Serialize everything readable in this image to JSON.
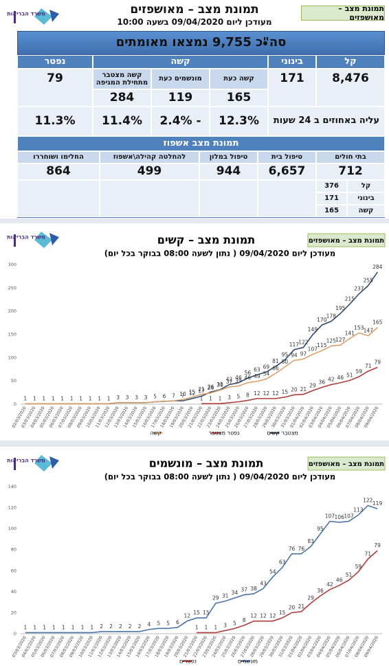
{
  "header": {
    "logo": "משרד הבריאות",
    "badge": "תמונת מצב – מאושפזים",
    "title": "תמונת מצב – מאושפזים",
    "subtitle": "מעודכן ליום 09/04/2020 בשעה 10:00"
  },
  "summary": "סה\"כ 9,755 נמצאו מאומתים",
  "status_table": {
    "header": [
      "קל",
      "בינוני",
      "קשה",
      "נפטר"
    ],
    "severe_sub": [
      "קשה כעת",
      "מונשמים כעת",
      "קשה מצטבר מתחילת המגיפה"
    ],
    "mild": "8,476",
    "moderate": "171",
    "severe_values": [
      "165",
      "119",
      "284"
    ],
    "deceased": "79",
    "change_label": "עליה באחוזים ב 24 שעות",
    "changes": [
      "12.3%",
      "- 2.4%",
      "11.4%",
      "11.3%"
    ]
  },
  "hospital_table": {
    "title": "תמונת מצב אשפוז",
    "header": [
      "בתי חולים",
      "טיפול בית",
      "טיפול במלון",
      "להחלטה קהילה\\אשפוז",
      "החלימו ושוחררו"
    ],
    "values": [
      "712",
      "6,657",
      "944",
      "499",
      "864"
    ],
    "breakdown": [
      [
        "קל",
        "376"
      ],
      [
        "בינוני",
        "171"
      ],
      [
        "קשה",
        "165"
      ]
    ]
  },
  "chart_data": [
    {
      "type": "line",
      "logo": "משרד הבריאות",
      "badge": "תמונת מצב – מאושפזים",
      "title": "תמונת מצב – קשים",
      "subtitle": "מעודכן ליום 09/04/2020 ( נתון לשעה 08:00 בבוקר בכל יום)",
      "categories": [
        "02/03/2020",
        "03/03/2020",
        "04/03/2020",
        "05/03/2020",
        "06/03/2020",
        "07/03/2020",
        "08/03/2020",
        "09/03/2020",
        "10/03/2020",
        "11/03/2020",
        "12/03/2020",
        "13/03/2020",
        "14/03/2020",
        "15/03/2020",
        "16/03/2020",
        "17/03/2020",
        "18/03/2020",
        "19/03/2020",
        "20/03/2020",
        "21/03/2020",
        "22/03/2020",
        "23/03/2020",
        "24/03/2020",
        "25/03/2020",
        "26/03/2020",
        "27/03/2020",
        "28/03/2020",
        "29/03/2020",
        "30/03/2020",
        "31/03/2020",
        "01/04/2020",
        "02/04/2020",
        "03/04/2020",
        "04/04/2020",
        "05/04/2020",
        "06/04/2020",
        "07/04/2020",
        "08/04/2020",
        "09/04/2020"
      ],
      "series": [
        {
          "name": "מצטבר קשים",
          "color": "#2e4a6d",
          "values": [
            1,
            1,
            1,
            1,
            1,
            1,
            1,
            1,
            1,
            1,
            3,
            3,
            3,
            3,
            5,
            6,
            7,
            7,
            12,
            17,
            26,
            31,
            42,
            46,
            56,
            63,
            69,
            81,
            95,
            117,
            122,
            149,
            170,
            178,
            195,
            215,
            237,
            255,
            284
          ]
        },
        {
          "name": "נפטר מצטבר",
          "color": "#b23b3b",
          "values": [
            null,
            null,
            null,
            null,
            null,
            null,
            null,
            null,
            null,
            null,
            null,
            null,
            null,
            null,
            null,
            null,
            null,
            null,
            null,
            1,
            1,
            1,
            3,
            5,
            8,
            12,
            12,
            12,
            15,
            20,
            21,
            29,
            36,
            42,
            46,
            51,
            59,
            71,
            79
          ]
        },
        {
          "name": "קשה",
          "color": "#d9a06b",
          "values": [
            1,
            1,
            1,
            1,
            1,
            1,
            1,
            1,
            1,
            1,
            3,
            3,
            3,
            3,
            5,
            6,
            7,
            10,
            15,
            21,
            24,
            30,
            37,
            39,
            46,
            49,
            54,
            66,
            80,
            94,
            97,
            107,
            115,
            125,
            127,
            141,
            153,
            147,
            165
          ]
        }
      ],
      "ylim": [
        0,
        300
      ],
      "yticks": [
        0,
        50,
        100,
        150,
        200,
        250,
        300
      ],
      "grid": false
    },
    {
      "type": "line",
      "logo": "משרד הבריאות",
      "badge": "תמונת מצב – מאושפזים",
      "title": "תמונת מצב – מונשמים",
      "subtitle": "מעודכן ליום 09/04/2020 ( נתון לשעה 08:00 בבוקר בכל יום)",
      "categories": [
        "03/03/2020",
        "04/03/2020",
        "05/03/2020",
        "06/03/2020",
        "07/03/2020",
        "08/03/2020",
        "09/03/2020",
        "10/03/2020",
        "11/03/2020",
        "12/03/2020",
        "13/03/2020",
        "14/03/2020",
        "15/03/2020",
        "16/03/2020",
        "17/03/2020",
        "18/03/2020",
        "19/03/2020",
        "20/03/2020",
        "21/03/2020",
        "22/03/2020",
        "23/03/2020",
        "24/03/2020",
        "25/03/2020",
        "26/03/2020",
        "27/03/2020",
        "28/03/2020",
        "29/03/2020",
        "30/03/2020",
        "31/03/2020",
        "01/04/2020",
        "02/04/2020",
        "03/04/2020",
        "04/04/2020",
        "05/04/2020",
        "06/04/2020",
        "07/04/2020",
        "08/04/2020",
        "09/04/2020"
      ],
      "series": [
        {
          "name": "מונשמים",
          "color": "#4b74a6",
          "values": [
            1,
            1,
            1,
            1,
            1,
            1,
            1,
            1,
            2,
            2,
            2,
            2,
            2,
            4,
            5,
            5,
            6,
            12,
            15,
            15,
            29,
            31,
            34,
            37,
            38,
            43,
            54,
            63,
            76,
            76,
            83,
            95,
            107,
            106,
            107,
            113,
            122,
            119
          ]
        },
        {
          "name": "נפטרים",
          "color": "#b23b3b",
          "values": [
            null,
            null,
            null,
            null,
            null,
            null,
            null,
            null,
            null,
            null,
            null,
            null,
            null,
            null,
            null,
            null,
            null,
            null,
            1,
            1,
            1,
            3,
            5,
            8,
            12,
            12,
            12,
            15,
            20,
            21,
            29,
            36,
            42,
            46,
            51,
            59,
            71,
            79
          ]
        }
      ],
      "ylim": [
        0,
        140
      ],
      "yticks": [
        0,
        20,
        40,
        60,
        80,
        100,
        120,
        140
      ],
      "grid": false
    }
  ]
}
